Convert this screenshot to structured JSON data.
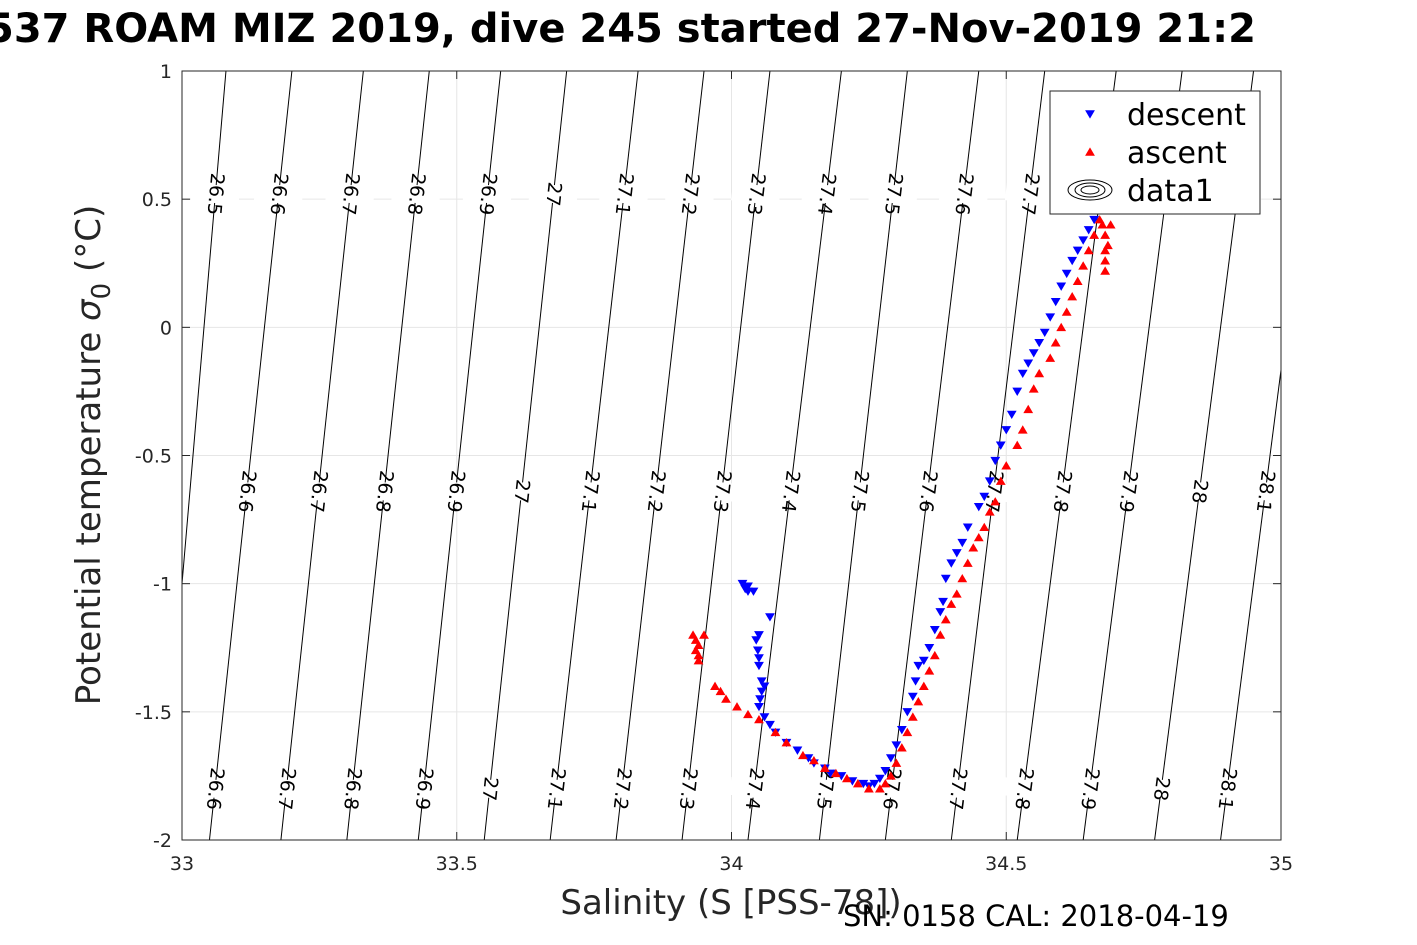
{
  "title": "537 ROAM MIZ 2019, dive 245 started 27-Nov-2019 21:2",
  "footer": "SN: 0158  CAL: 2018-04-19",
  "chart_data": {
    "type": "scatter",
    "xlabel": "Salinity (S [PSS-78])",
    "ylabel": "Potential temperature",
    "ylabel_symbol": "σ",
    "ylabel_subscript": "0",
    "ylabel_unit": "(°C)",
    "xlim": [
      33,
      35
    ],
    "ylim": [
      -2,
      1
    ],
    "xticks": [
      33,
      33.5,
      34,
      34.5,
      35
    ],
    "yticks": [
      -2,
      -1.5,
      -1,
      -0.5,
      0,
      0.5,
      1
    ],
    "xtick_labels": [
      "33",
      "33.5",
      "34",
      "34.5",
      "35"
    ],
    "ytick_labels": [
      "-2",
      "-1.5",
      "-1",
      "-0.5",
      "0",
      "0.5",
      "1"
    ],
    "grid": true,
    "legend_position": "top-right",
    "colors": {
      "descent": "#0000ff",
      "ascent": "#ff0000",
      "contour": "#000000",
      "grid": "#e6e6e6"
    },
    "legend": [
      {
        "label": "descent",
        "marker": "triangle-down",
        "color": "#0000ff"
      },
      {
        "label": "ascent",
        "marker": "triangle-up",
        "color": "#ff0000"
      },
      {
        "label": "data1",
        "marker": "contour",
        "color": "#000000"
      }
    ],
    "isopycnals": [
      {
        "sigma": 26.5,
        "label": "26.5",
        "x_at_top": 33.08,
        "x_at_bottom": 32.96
      },
      {
        "sigma": 26.6,
        "label": "26.6",
        "x_at_top": 33.2,
        "x_at_bottom": 33.05
      },
      {
        "sigma": 26.7,
        "label": "26.7",
        "x_at_top": 33.33,
        "x_at_bottom": 33.18
      },
      {
        "sigma": 26.8,
        "label": "26.8",
        "x_at_top": 33.45,
        "x_at_bottom": 33.3
      },
      {
        "sigma": 26.9,
        "label": "26.9",
        "x_at_top": 33.58,
        "x_at_bottom": 33.43
      },
      {
        "sigma": 27.0,
        "label": "27",
        "x_at_top": 33.7,
        "x_at_bottom": 33.55
      },
      {
        "sigma": 27.1,
        "label": "27.1",
        "x_at_top": 33.83,
        "x_at_bottom": 33.67
      },
      {
        "sigma": 27.2,
        "label": "27.2",
        "x_at_top": 33.95,
        "x_at_bottom": 33.79
      },
      {
        "sigma": 27.3,
        "label": "27.3",
        "x_at_top": 34.07,
        "x_at_bottom": 33.91
      },
      {
        "sigma": 27.4,
        "label": "27.4",
        "x_at_top": 34.2,
        "x_at_bottom": 34.03
      },
      {
        "sigma": 27.5,
        "label": "27.5",
        "x_at_top": 34.32,
        "x_at_bottom": 34.16
      },
      {
        "sigma": 27.6,
        "label": "27.6",
        "x_at_top": 34.45,
        "x_at_bottom": 34.28
      },
      {
        "sigma": 27.7,
        "label": "27.7",
        "x_at_top": 34.57,
        "x_at_bottom": 34.4
      },
      {
        "sigma": 27.8,
        "label": "27.8",
        "x_at_top": 34.7,
        "x_at_bottom": 34.52
      },
      {
        "sigma": 27.9,
        "label": "27.9",
        "x_at_top": 34.82,
        "x_at_bottom": 34.64
      },
      {
        "sigma": 28.0,
        "label": "28",
        "x_at_top": 34.95,
        "x_at_bottom": 34.77
      },
      {
        "sigma": 28.1,
        "label": "28.1",
        "x_at_top": 35.07,
        "x_at_bottom": 34.89
      }
    ],
    "contour_label_rows_y": [
      0.52,
      -0.64,
      -1.8
    ],
    "series": [
      {
        "name": "descent",
        "marker": "triangle-down",
        "color": "#0000ff",
        "points": [
          [
            34.02,
            -1.0
          ],
          [
            34.03,
            -1.01
          ],
          [
            34.025,
            -1.02
          ],
          [
            34.03,
            -1.03
          ],
          [
            34.04,
            -1.03
          ],
          [
            34.07,
            -1.13
          ],
          [
            34.05,
            -1.2
          ],
          [
            34.045,
            -1.22
          ],
          [
            34.048,
            -1.26
          ],
          [
            34.05,
            -1.29
          ],
          [
            34.05,
            -1.32
          ],
          [
            34.055,
            -1.38
          ],
          [
            34.06,
            -1.4
          ],
          [
            34.055,
            -1.42
          ],
          [
            34.052,
            -1.45
          ],
          [
            34.05,
            -1.48
          ],
          [
            34.06,
            -1.52
          ],
          [
            34.07,
            -1.55
          ],
          [
            34.08,
            -1.58
          ],
          [
            34.1,
            -1.62
          ],
          [
            34.12,
            -1.65
          ],
          [
            34.14,
            -1.68
          ],
          [
            34.15,
            -1.7
          ],
          [
            34.17,
            -1.72
          ],
          [
            34.18,
            -1.74
          ],
          [
            34.2,
            -1.75
          ],
          [
            34.22,
            -1.77
          ],
          [
            34.24,
            -1.78
          ],
          [
            34.25,
            -1.79
          ],
          [
            34.26,
            -1.78
          ],
          [
            34.27,
            -1.76
          ],
          [
            34.28,
            -1.73
          ],
          [
            34.29,
            -1.68
          ],
          [
            34.3,
            -1.63
          ],
          [
            34.31,
            -1.57
          ],
          [
            34.32,
            -1.5
          ],
          [
            34.33,
            -1.44
          ],
          [
            34.335,
            -1.38
          ],
          [
            34.34,
            -1.32
          ],
          [
            34.35,
            -1.3
          ],
          [
            34.36,
            -1.25
          ],
          [
            34.37,
            -1.18
          ],
          [
            34.38,
            -1.11
          ],
          [
            34.385,
            -1.07
          ],
          [
            34.39,
            -0.98
          ],
          [
            34.4,
            -0.92
          ],
          [
            34.41,
            -0.88
          ],
          [
            34.42,
            -0.84
          ],
          [
            34.43,
            -0.78
          ],
          [
            34.45,
            -0.7
          ],
          [
            34.46,
            -0.66
          ],
          [
            34.47,
            -0.6
          ],
          [
            34.48,
            -0.52
          ],
          [
            34.49,
            -0.46
          ],
          [
            34.5,
            -0.4
          ],
          [
            34.51,
            -0.34
          ],
          [
            34.52,
            -0.25
          ],
          [
            34.53,
            -0.18
          ],
          [
            34.54,
            -0.14
          ],
          [
            34.55,
            -0.1
          ],
          [
            34.56,
            -0.06
          ],
          [
            34.57,
            -0.02
          ],
          [
            34.58,
            0.04
          ],
          [
            34.59,
            0.1
          ],
          [
            34.6,
            0.16
          ],
          [
            34.61,
            0.21
          ],
          [
            34.62,
            0.26
          ],
          [
            34.63,
            0.3
          ],
          [
            34.64,
            0.34
          ],
          [
            34.65,
            0.38
          ],
          [
            34.66,
            0.42
          ],
          [
            34.67,
            0.46
          ],
          [
            34.68,
            0.5
          ]
        ]
      },
      {
        "name": "ascent",
        "marker": "triangle-up",
        "color": "#ff0000",
        "points": [
          [
            33.93,
            -1.2
          ],
          [
            33.935,
            -1.22
          ],
          [
            33.94,
            -1.24
          ],
          [
            33.935,
            -1.26
          ],
          [
            33.94,
            -1.28
          ],
          [
            33.94,
            -1.3
          ],
          [
            33.95,
            -1.2
          ],
          [
            33.97,
            -1.4
          ],
          [
            33.98,
            -1.42
          ],
          [
            33.99,
            -1.45
          ],
          [
            34.01,
            -1.48
          ],
          [
            34.03,
            -1.51
          ],
          [
            34.05,
            -1.53
          ],
          [
            34.08,
            -1.58
          ],
          [
            34.1,
            -1.62
          ],
          [
            34.13,
            -1.67
          ],
          [
            34.15,
            -1.69
          ],
          [
            34.17,
            -1.72
          ],
          [
            34.19,
            -1.74
          ],
          [
            34.21,
            -1.76
          ],
          [
            34.23,
            -1.78
          ],
          [
            34.25,
            -1.8
          ],
          [
            34.27,
            -1.8
          ],
          [
            34.28,
            -1.78
          ],
          [
            34.29,
            -1.75
          ],
          [
            34.3,
            -1.7
          ],
          [
            34.31,
            -1.64
          ],
          [
            34.32,
            -1.58
          ],
          [
            34.33,
            -1.52
          ],
          [
            34.34,
            -1.46
          ],
          [
            34.35,
            -1.4
          ],
          [
            34.36,
            -1.34
          ],
          [
            34.37,
            -1.28
          ],
          [
            34.38,
            -1.2
          ],
          [
            34.39,
            -1.14
          ],
          [
            34.4,
            -1.08
          ],
          [
            34.41,
            -1.04
          ],
          [
            34.42,
            -0.98
          ],
          [
            34.43,
            -0.92
          ],
          [
            34.44,
            -0.86
          ],
          [
            34.45,
            -0.82
          ],
          [
            34.46,
            -0.78
          ],
          [
            34.47,
            -0.72
          ],
          [
            34.48,
            -0.68
          ],
          [
            34.49,
            -0.6
          ],
          [
            34.5,
            -0.54
          ],
          [
            34.52,
            -0.46
          ],
          [
            34.53,
            -0.4
          ],
          [
            34.54,
            -0.32
          ],
          [
            34.55,
            -0.24
          ],
          [
            34.56,
            -0.18
          ],
          [
            34.58,
            -0.12
          ],
          [
            34.59,
            -0.06
          ],
          [
            34.6,
            0.0
          ],
          [
            34.61,
            0.06
          ],
          [
            34.62,
            0.12
          ],
          [
            34.63,
            0.18
          ],
          [
            34.64,
            0.24
          ],
          [
            34.65,
            0.3
          ],
          [
            34.66,
            0.36
          ],
          [
            34.67,
            0.42
          ],
          [
            34.675,
            0.4
          ],
          [
            34.68,
            0.36
          ],
          [
            34.68,
            0.3
          ],
          [
            34.68,
            0.26
          ],
          [
            34.68,
            0.22
          ],
          [
            34.685,
            0.32
          ],
          [
            34.69,
            0.4
          ],
          [
            34.69,
            0.48
          ]
        ]
      }
    ]
  }
}
